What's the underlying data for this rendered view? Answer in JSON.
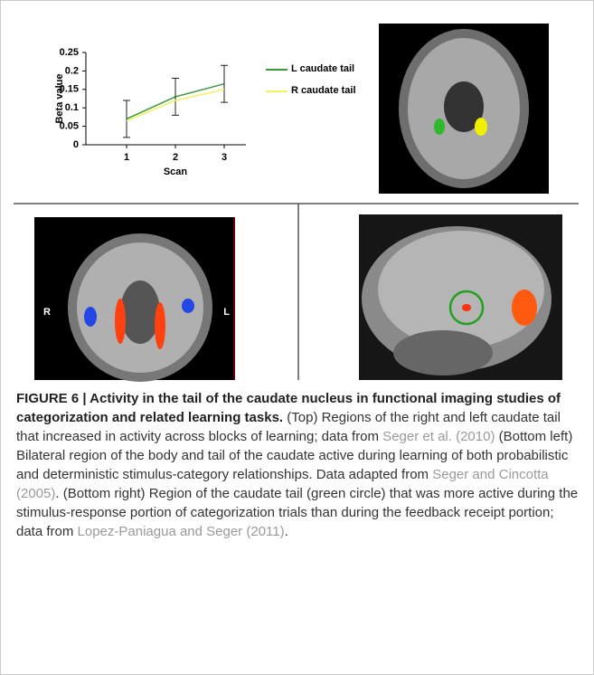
{
  "chart_data": {
    "type": "line",
    "ylabel": "Beta value",
    "xlabel": "Scan",
    "categories": [
      "1",
      "2",
      "3"
    ],
    "series": [
      {
        "name": "L caudate tail",
        "color": "#3a9a3a",
        "values": [
          0.07,
          0.13,
          0.165
        ],
        "errors": [
          0.05,
          0.05,
          0.05
        ]
      },
      {
        "name": "R caudate tail",
        "color": "#f2f25a",
        "values": [
          0.065,
          0.12,
          0.15
        ]
      }
    ],
    "ylim": [
      0,
      0.25
    ],
    "yticks": [
      0,
      0.05,
      0.1,
      0.15,
      0.2,
      0.25
    ],
    "legend": "right"
  },
  "images": {
    "bottom_left_left": "R",
    "bottom_left_right": "L"
  },
  "caption": {
    "label": "FIGURE 6 | Activity in the tail of the caudate nucleus in functional imaging studies of categorization and related learning tasks.",
    "parts": [
      {
        "text": " (Top) Regions of the right and left caudate tail that increased in activity across blocks of learning; data from "
      },
      {
        "text": "Seger et al. (2010)",
        "style": "link"
      },
      {
        "text": " (Bottom left) Bilateral region of the body and tail of the caudate active during learning of both probabilistic and deterministic stimulus-category relationships. Data adapted from "
      },
      {
        "text": "Seger and Cincotta (2005)",
        "style": "link"
      },
      {
        "text": ". (Bottom right) Region of the caudate tail (green circle) that was more active during the stimulus-response portion of categorization trials than during the feedback receipt portion; data from "
      },
      {
        "text": "Lopez-Paniagua and Seger (2011)",
        "style": "link"
      },
      {
        "text": "."
      }
    ]
  }
}
